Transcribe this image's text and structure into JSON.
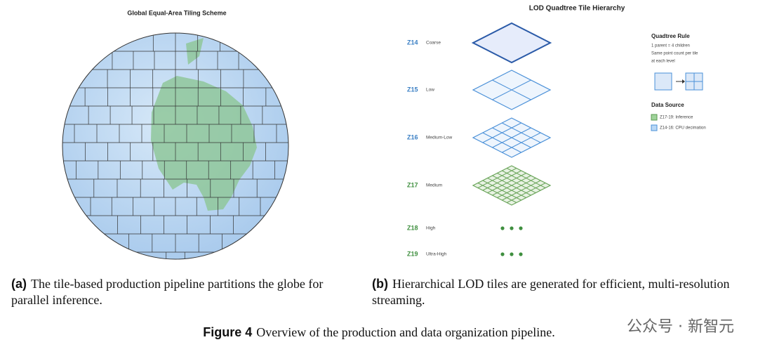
{
  "left_panel": {
    "title": "Global Equal-Area Tiling Scheme",
    "caption": {
      "label": "(a)",
      "text": "The tile-based production pipeline partitions the globe for parallel inference."
    }
  },
  "right_panel": {
    "title": "LOD Quadtree Tile Hierarchy",
    "levels": [
      {
        "zoom": "Z14",
        "name": "Coarse"
      },
      {
        "zoom": "Z15",
        "name": "Low"
      },
      {
        "zoom": "Z16",
        "name": "Medium-Low"
      },
      {
        "zoom": "Z17",
        "name": "Medium"
      },
      {
        "zoom": "Z18",
        "name": "High"
      },
      {
        "zoom": "Z19",
        "name": "Ultra-High"
      }
    ],
    "legend": {
      "rule_title": "Quadtree Rule",
      "rule_lines": [
        "1 parent = 4 children",
        "Same point count per tile",
        "at each level"
      ],
      "source_title": "Data Source",
      "sources": [
        "Z17-19: Inference",
        "Z14-16: CPU decimation"
      ]
    },
    "caption": {
      "label": "(b)",
      "text": "Hierarchical LOD tiles are generated for efficient, multi-resolution streaming."
    }
  },
  "figure_caption": {
    "label": "Figure 4",
    "text": "Overview of the production and data organization pipeline."
  },
  "watermark": "公众号 · 新智元"
}
